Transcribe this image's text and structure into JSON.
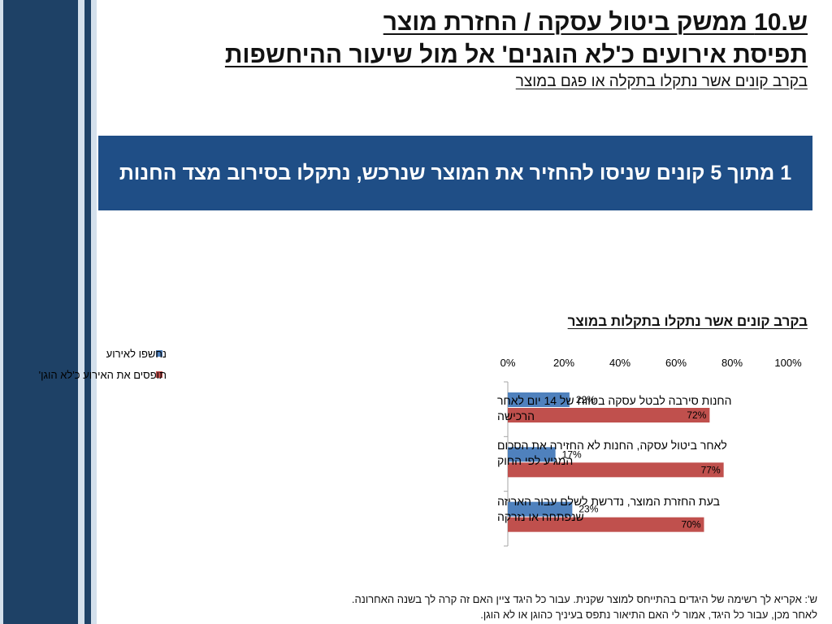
{
  "header": {
    "title_line1": "ש.10 ממשק ביטול עסקה / החזרת מוצר",
    "title_line2": "תפיסת אירועים כ'לא הוגנים' אל מול שיעור ההיחשפות",
    "subtitle": "בקרב קונים אשר נתקלו בתקלה או פגם במוצר"
  },
  "callout": {
    "text": "1 מתוך 5 קונים שניסו להחזיר את המוצר שנרכש, נתקלו בסירוב מצד החנות"
  },
  "colors": {
    "dark_navy": "#1e4166",
    "callout_blue": "#1f4e86",
    "light_band": "#d4e0ec",
    "series_blue": "#4f81bd",
    "series_red": "#c0504d"
  },
  "chart_data": {
    "type": "bar",
    "orientation": "horizontal",
    "title": "בקרב קונים אשר נתקלו בתקלות במוצר",
    "categories": [
      "החנות סירבה לבטל עסקה בטווח של 14 יום לאחר הרכישה",
      "לאחר ביטול עסקה, החנות לא החזירה את הסכום המגיע לפי החוק",
      "בעת החזרת המוצר, נדרשת לשלם עבור האריזה שנפתחה או נזרקה"
    ],
    "series": [
      {
        "name": "נחשפו לאירוע",
        "color": "#4f81bd",
        "values": [
          22,
          17,
          23
        ],
        "labels": [
          "22%",
          "17%",
          "23%"
        ]
      },
      {
        "name": "תופסים את האירוע כ'לא הוגן'",
        "color": "#c0504d",
        "values": [
          72,
          77,
          70
        ],
        "labels": [
          "72%",
          "77%",
          "70%"
        ]
      }
    ],
    "xlim": [
      0,
      100
    ],
    "ticks": [
      0,
      20,
      40,
      60,
      80,
      100
    ],
    "tick_labels": [
      "0%",
      "20%",
      "40%",
      "60%",
      "80%",
      "100%"
    ],
    "tick_position": "top",
    "grid": false,
    "legend_position": "top-left"
  },
  "footnote": {
    "line1": "ש': אקריא לך רשימה של היגדים בהתייחס למוצר שקנית.  עבור כל היגד ציין האם זה קרה לך בשנה האחרונה.",
    "line2": "לאחר מכן, עבור כל היגד, אמור לי האם התיאור נתפס בעיניך כהוגן או לא הוגן."
  }
}
